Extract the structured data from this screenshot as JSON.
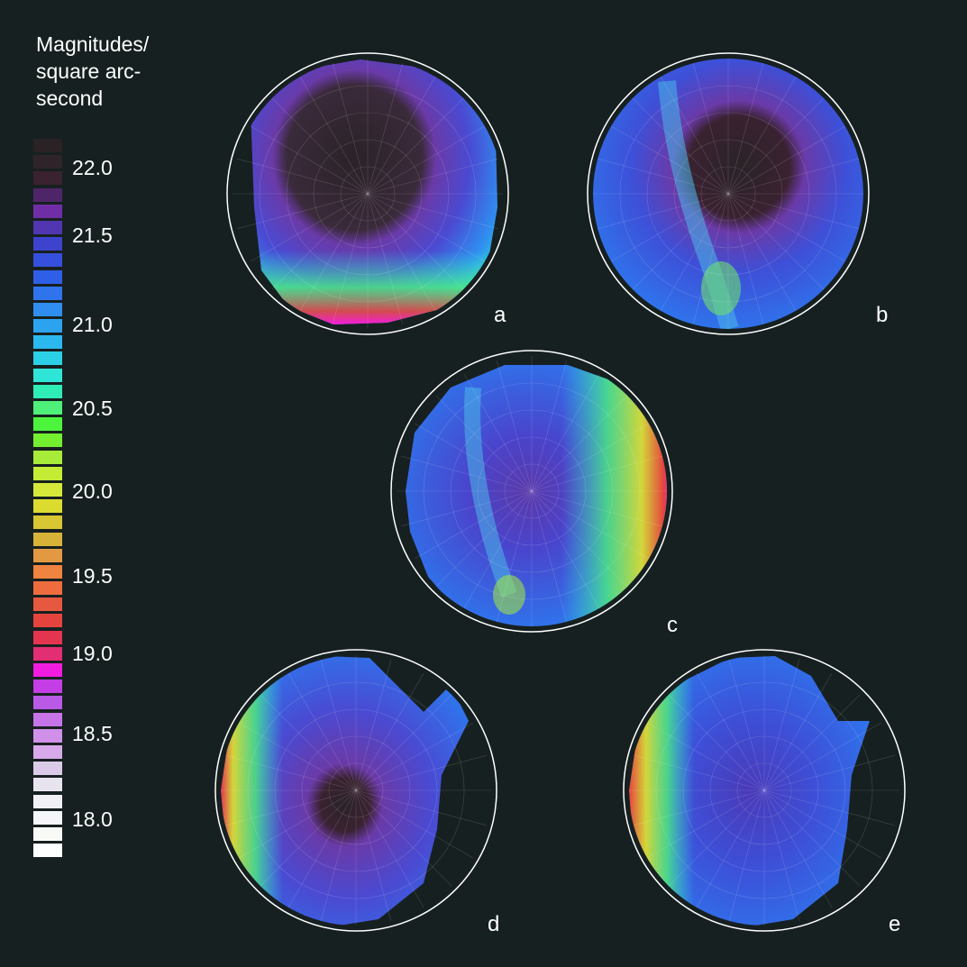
{
  "legend": {
    "title": "Magnitudes/ square arc- second",
    "colors": [
      "#2a2224",
      "#2f2429",
      "#3a2231",
      "#4e2569",
      "#6f2ea6",
      "#5136b1",
      "#3d43cc",
      "#3550dd",
      "#2f5fe6",
      "#2f74ec",
      "#2f8ef0",
      "#2ba3ef",
      "#2bb8ef",
      "#2bd0e6",
      "#2fe5d8",
      "#2fedb6",
      "#4ef07a",
      "#4cf53c",
      "#74ef30",
      "#a6ec38",
      "#c4ec35",
      "#d5e83a",
      "#dcdc30",
      "#d8c632",
      "#d8b238",
      "#e39842",
      "#ee8440",
      "#ee6c3e",
      "#e75840",
      "#e5443e",
      "#e33450",
      "#e22e72",
      "#f21ce0",
      "#c33ee4",
      "#b95ae6",
      "#c674e8",
      "#d090e9",
      "#d7a8ea",
      "#dccae9",
      "#e8e4ef",
      "#f0f0f6",
      "#f4f6fa",
      "#f8faf8",
      "#fefefe"
    ],
    "ticks": [
      "22.0",
      "21.5",
      "21.0",
      "20.5",
      "20.0",
      "19.5",
      "19.0",
      "18.5",
      "18.0"
    ]
  },
  "panels": [
    {
      "label": "a",
      "pattern": "top-dark-bottom-glow"
    },
    {
      "label": "b",
      "pattern": "centre-dark-milky-way"
    },
    {
      "label": "c",
      "pattern": "right-edge-glow"
    },
    {
      "label": "d",
      "pattern": "left-edge-glow-centre-dark"
    },
    {
      "label": "e",
      "pattern": "left-edge-glow"
    }
  ]
}
